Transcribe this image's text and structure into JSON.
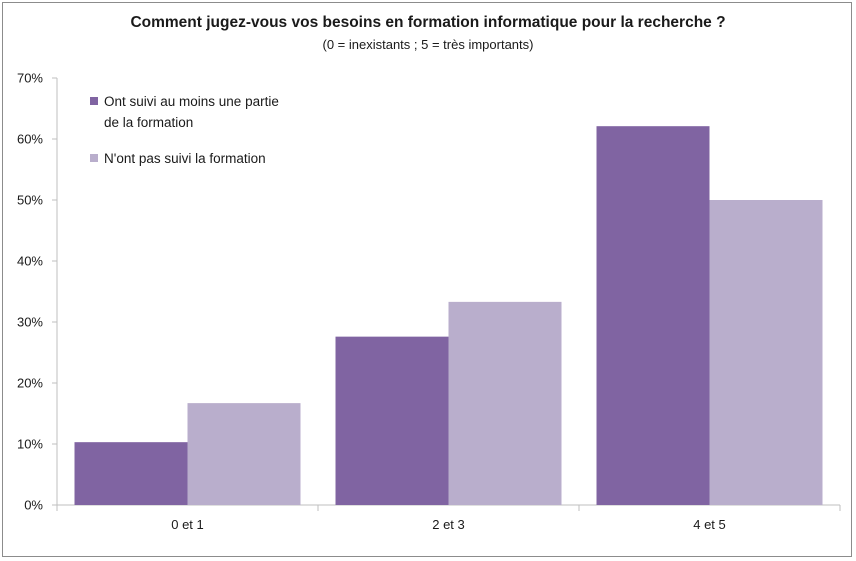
{
  "chart_data": {
    "type": "bar",
    "title": "Comment jugez-vous vos besoins en formation informatique pour la recherche ?",
    "subtitle": "(0 = inexistants ; 5 = très importants)",
    "categories": [
      "0 et 1",
      "2 et 3",
      "4 et 5"
    ],
    "series": [
      {
        "name_lines": [
          "Ont suivi au moins une partie",
          "de la formation"
        ],
        "values": [
          10.3,
          27.6,
          62.1
        ],
        "color": "#8064a2"
      },
      {
        "name_lines": [
          "N'ont pas suivi la formation"
        ],
        "values": [
          16.7,
          33.3,
          50.0
        ],
        "color": "#b9aecc"
      }
    ],
    "y_ticks": [
      "0%",
      "10%",
      "20%",
      "30%",
      "40%",
      "50%",
      "60%",
      "70%"
    ],
    "ylim": [
      0,
      70
    ],
    "grid": false,
    "legend_position": "top-left"
  }
}
